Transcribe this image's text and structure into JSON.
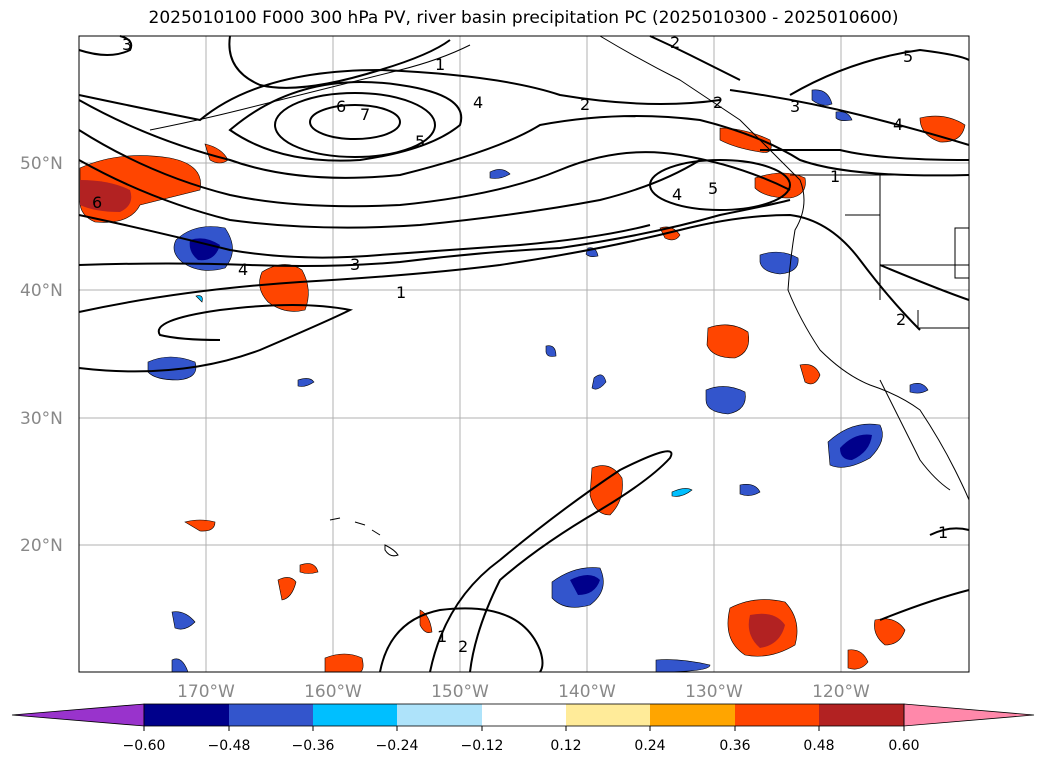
{
  "title": "2025010100 F000 300 hPa PV, river basin precipitation PC (2025010300 - 2025010600)",
  "map": {
    "lat_labels": [
      "50°N",
      "40°N",
      "30°N",
      "20°N"
    ],
    "lon_labels": [
      "170°W",
      "160°W",
      "150°W",
      "140°W",
      "130°W",
      "120°W"
    ],
    "contour_labels": [
      "3",
      "2",
      "1",
      "2",
      "5",
      "3",
      "4",
      "6",
      "7",
      "4",
      "2",
      "5",
      "1",
      "4",
      "5",
      "6",
      "4",
      "3",
      "1",
      "2",
      "1",
      "2",
      "1"
    ]
  },
  "colorbar": {
    "ticks": [
      "−0.60",
      "−0.48",
      "−0.36",
      "−0.24",
      "−0.12",
      "0.12",
      "0.24",
      "0.36",
      "0.48",
      "0.60"
    ],
    "colors": [
      "#9933cc",
      "#00008b",
      "#3355cc",
      "#00bfff",
      "#aee3fa",
      "#ffffff",
      "#ffeb99",
      "#ffa500",
      "#ff4500",
      "#b22222",
      "#ff88aa"
    ]
  }
}
